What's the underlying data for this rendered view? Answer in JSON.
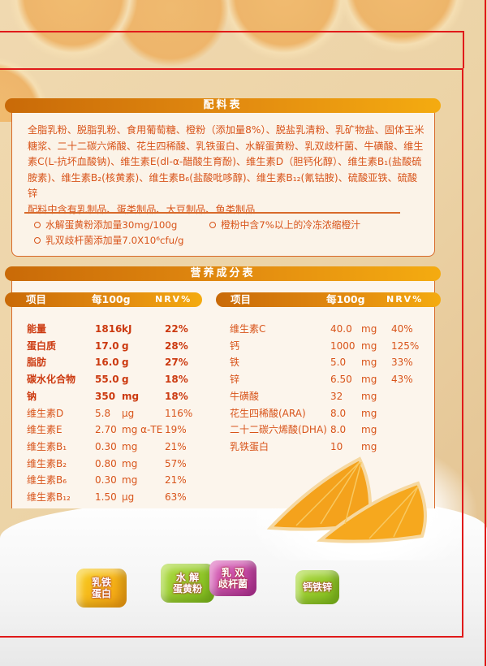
{
  "ingredients": {
    "title": "配料表",
    "text": "全脂乳粉、脱脂乳粉、食用葡萄糖、橙粉（添加量8%）、脱盐乳清粉、乳矿物盐、固体玉米糖浆、二十二碳六烯酸、花生四稀酸、乳铁蛋白、水解蛋黄粉、乳双歧杆菌、牛磺酸、维生素C(L-抗坏血酸钠)、维生素E(dl-α-醋酸生育酚)、维生素D（胆钙化醇）、维生素B₁(盐酸硫胺素)、维生素B₂(核黄素)、维生素B₆(盐酸吡哆醇)、维生素B₁₂(氰钴胺)、硫酸亚铁、硫酸锌",
    "allergens": "配料中含有乳制品、蛋类制品、大豆制品、鱼类制品",
    "notes": [
      "水解蛋黄粉添加量30mg/100g",
      "橙粉中含7%以上的冷冻浓缩橙汁",
      "乳双歧杆菌添加量7.0X10⁶cfu/g"
    ]
  },
  "nutrition": {
    "title": "营养成分表",
    "headers": {
      "item": "项目",
      "per100g": "每100g",
      "nrv": "NRV%"
    },
    "left": [
      {
        "name": "能量",
        "value": "1816",
        "unit": "kJ",
        "nrv": "22%",
        "bold": true
      },
      {
        "name": "蛋白质",
        "value": "17.0",
        "unit": "g",
        "nrv": "28%",
        "bold": true
      },
      {
        "name": "脂肪",
        "value": "16.0",
        "unit": "g",
        "nrv": "27%",
        "bold": true
      },
      {
        "name": "碳水化合物",
        "value": "55.0",
        "unit": "g",
        "nrv": "18%",
        "bold": true
      },
      {
        "name": "钠",
        "value": "350",
        "unit": "mg",
        "nrv": "18%",
        "bold": true
      },
      {
        "name": "维生素D",
        "value": "5.8",
        "unit": "μg",
        "nrv": "116%"
      },
      {
        "name": "维生素E",
        "value": "2.70",
        "unit": "mg α-TE",
        "nrv": "19%"
      },
      {
        "name": "维生素B₁",
        "value": "0.30",
        "unit": "mg",
        "nrv": "21%"
      },
      {
        "name": "维生素B₂",
        "value": "0.80",
        "unit": "mg",
        "nrv": "57%"
      },
      {
        "name": "维生素B₆",
        "value": "0.30",
        "unit": "mg",
        "nrv": "21%"
      },
      {
        "name": "维生素B₁₂",
        "value": "1.50",
        "unit": "μg",
        "nrv": "63%"
      }
    ],
    "right": [
      {
        "name": "维生素C",
        "value": "40.0",
        "unit": "mg",
        "nrv": "40%"
      },
      {
        "name": "钙",
        "value": "1000",
        "unit": "mg",
        "nrv": "125%"
      },
      {
        "name": "铁",
        "value": "5.0",
        "unit": "mg",
        "nrv": "33%"
      },
      {
        "name": "锌",
        "value": "6.50",
        "unit": "mg",
        "nrv": "43%"
      },
      {
        "name": "牛磺酸",
        "value": "32",
        "unit": "mg",
        "nrv": ""
      },
      {
        "name": "花生四稀酸(ARA)",
        "value": "8.0",
        "unit": "mg",
        "nrv": ""
      },
      {
        "name": "二十二碳六烯酸(DHA)",
        "value": "8.0",
        "unit": "mg",
        "nrv": ""
      },
      {
        "name": "乳铁蛋白",
        "value": "10",
        "unit": "mg",
        "nrv": ""
      }
    ]
  },
  "cubes": [
    {
      "line1": "乳铁",
      "line2": "蛋白",
      "color": "#f2a010"
    },
    {
      "line1": "水 解",
      "line2": "蛋黄粉",
      "color": "#8cc21c"
    },
    {
      "line1": "乳 双",
      "line2": "歧杆菌",
      "color": "#d04aa8"
    },
    {
      "line1": "钙铁锌",
      "line2": "",
      "color": "#8cc21c"
    }
  ],
  "colors": {
    "accent": "#e38c10",
    "text": "#d8541a",
    "frame": "#e01a1a"
  }
}
